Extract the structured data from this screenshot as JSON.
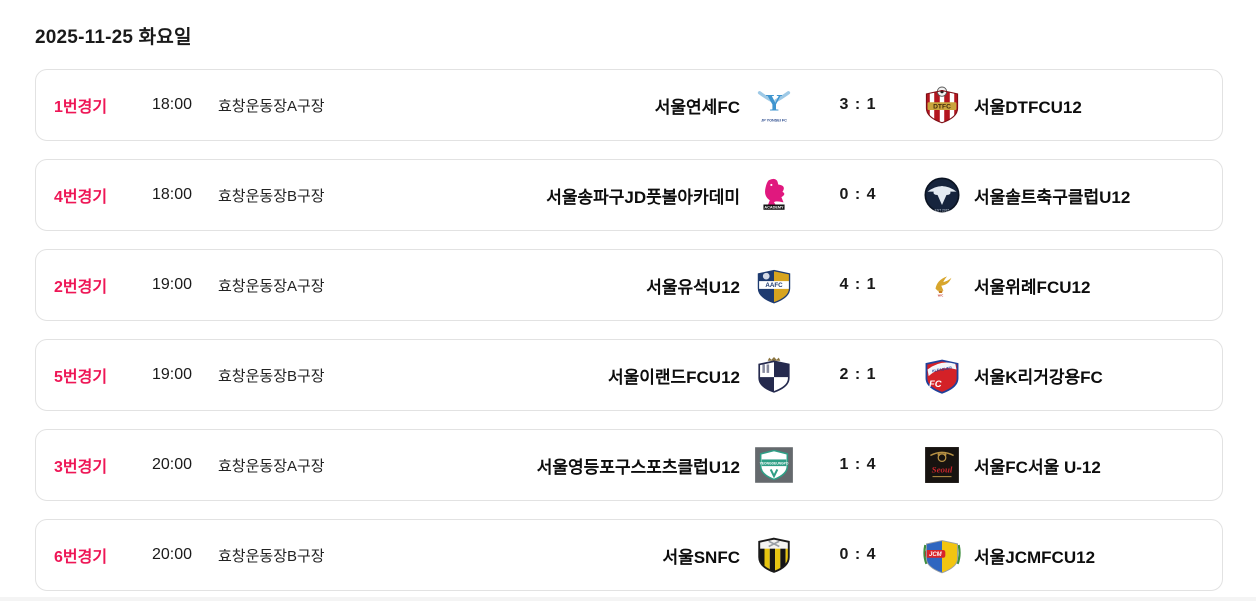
{
  "page": {
    "date_title": "2025-11-25 화요일"
  },
  "colors": {
    "accent": "#ee1656",
    "card_border": "#e2e2e2",
    "score_text": "#1a1a1a"
  },
  "matches": [
    {
      "label": "1번경기",
      "time": "18:00",
      "venue": "효창운동장A구장",
      "home": {
        "name": "서울연세FC",
        "logo": "yonsei-fc-logo"
      },
      "score": {
        "home": 3,
        "away": 1
      },
      "away": {
        "name": "서울DTFCU12",
        "logo": "dtfc-logo"
      }
    },
    {
      "label": "4번경기",
      "time": "18:00",
      "venue": "효창운동장B구장",
      "home": {
        "name": "서울송파구JD풋볼아카데미",
        "logo": "jd-academy-logo"
      },
      "score": {
        "home": 0,
        "away": 4
      },
      "away": {
        "name": "서울솔트축구클럽U12",
        "logo": "seoul-solt-logo"
      }
    },
    {
      "label": "2번경기",
      "time": "19:00",
      "venue": "효창운동장A구장",
      "home": {
        "name": "서울유석U12",
        "logo": "aafc-yuseok-logo"
      },
      "score": {
        "home": 4,
        "away": 1
      },
      "away": {
        "name": "서울위례FCU12",
        "logo": "wirye-fc-logo"
      }
    },
    {
      "label": "5번경기",
      "time": "19:00",
      "venue": "효창운동장B구장",
      "home": {
        "name": "서울이랜드FCU12",
        "logo": "eland-fc-logo"
      },
      "score": {
        "home": 2,
        "away": 1
      },
      "away": {
        "name": "서울K리거강용FC",
        "logo": "kleaguer-gangyong-logo"
      }
    },
    {
      "label": "3번경기",
      "time": "20:00",
      "venue": "효창운동장A구장",
      "home": {
        "name": "서울영등포구스포츠클럽U12",
        "logo": "yeongdeungpo-sc-logo"
      },
      "score": {
        "home": 1,
        "away": 4
      },
      "away": {
        "name": "서울FC서울 U-12",
        "logo": "fc-seoul-logo"
      }
    },
    {
      "label": "6번경기",
      "time": "20:00",
      "venue": "효창운동장B구장",
      "home": {
        "name": "서울SNFC",
        "logo": "snfc-logo"
      },
      "score": {
        "home": 0,
        "away": 4
      },
      "away": {
        "name": "서울JCMFCU12",
        "logo": "jcm-fc-logo"
      }
    }
  ]
}
